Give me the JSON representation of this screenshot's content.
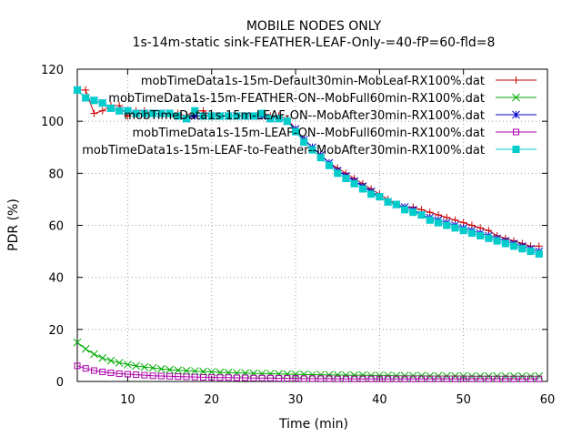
{
  "chart_data": {
    "type": "line",
    "title": "MOBILE NODES ONLY",
    "subtitle": "1s-14m-static sink-FEATHER-LEAF-Only-=40-fP=60-fld=8",
    "xlabel": "Time (min)",
    "ylabel": "PDR (%)",
    "xlim": [
      4,
      60
    ],
    "ylim": [
      0,
      120
    ],
    "xticks": [
      "10",
      "20",
      "30",
      "40",
      "50",
      "60"
    ],
    "yticks": [
      "0",
      "20",
      "40",
      "60",
      "80",
      "100",
      "120"
    ],
    "grid": true,
    "legend_position": "top-right",
    "series": [
      {
        "name": "mobTimeData1s-15m-Default30min-MobLeaf-RX100%.dat",
        "color": "#cc0000",
        "marker": "plus",
        "x": [
          4,
          5,
          6,
          7,
          8,
          9,
          10,
          11,
          12,
          13,
          14,
          15,
          16,
          17,
          18,
          19,
          20,
          21,
          22,
          23,
          24,
          25,
          26,
          27,
          28,
          29,
          30,
          31,
          32,
          33,
          34,
          35,
          36,
          37,
          38,
          39,
          40,
          41,
          42,
          43,
          44,
          45,
          46,
          47,
          48,
          49,
          50,
          51,
          52,
          53,
          54,
          55,
          56,
          57,
          58,
          59
        ],
        "y": [
          112,
          112,
          103,
          104,
          106,
          106,
          102,
          104,
          104,
          103,
          103,
          103,
          103,
          102,
          104,
          104,
          102,
          102,
          102,
          102,
          102,
          102,
          102,
          102,
          102,
          101,
          97,
          93,
          90,
          87,
          84,
          82,
          80,
          78,
          76,
          74,
          72,
          70,
          68,
          67,
          67,
          66,
          65,
          64,
          63,
          62,
          61,
          60,
          59,
          58,
          56,
          55,
          54,
          53,
          52,
          52
        ]
      },
      {
        "name": "mobTimeData1s-15m-FEATHER-ON--MobFull60min-RX100%.dat",
        "color": "#00aa00",
        "marker": "x",
        "x": [
          4,
          5,
          6,
          7,
          8,
          9,
          10,
          11,
          12,
          13,
          14,
          15,
          16,
          17,
          18,
          19,
          20,
          21,
          22,
          23,
          24,
          25,
          26,
          27,
          28,
          29,
          30,
          31,
          32,
          33,
          34,
          35,
          36,
          37,
          38,
          39,
          40,
          41,
          42,
          43,
          44,
          45,
          46,
          47,
          48,
          49,
          50,
          51,
          52,
          53,
          54,
          55,
          56,
          57,
          58,
          59
        ],
        "y": [
          15,
          12.5,
          10.5,
          9,
          8,
          7.2,
          6.5,
          6,
          5.5,
          5.2,
          4.8,
          4.5,
          4.3,
          4.1,
          4,
          3.8,
          3.7,
          3.5,
          3.4,
          3.3,
          3.2,
          3.1,
          3,
          3,
          2.9,
          2.8,
          2.7,
          2.7,
          2.6,
          2.6,
          2.5,
          2.5,
          2.4,
          2.4,
          2.4,
          2.3,
          2.3,
          2.3,
          2.2,
          2.2,
          2.2,
          2.2,
          2.1,
          2.1,
          2.1,
          2.1,
          2.1,
          2,
          2,
          2,
          2,
          2,
          2,
          2,
          2,
          2
        ]
      },
      {
        "name": "mobTimeData1s-15m-LEAF-ON--MobAfter30min-RX100%.dat",
        "color": "#0000cc",
        "marker": "star",
        "x": [
          4,
          5,
          6,
          7,
          8,
          9,
          10,
          11,
          12,
          13,
          14,
          15,
          16,
          17,
          18,
          19,
          20,
          21,
          22,
          23,
          24,
          25,
          26,
          27,
          28,
          29,
          30,
          31,
          32,
          33,
          34,
          35,
          36,
          37,
          38,
          39,
          40,
          41,
          42,
          43,
          44,
          45,
          46,
          47,
          48,
          49,
          50,
          51,
          52,
          53,
          54,
          55,
          56,
          57,
          58,
          59
        ],
        "y": [
          112,
          109,
          108,
          107,
          105,
          104,
          104,
          103,
          103,
          103,
          103,
          103,
          102,
          101,
          102,
          102,
          102,
          102,
          102,
          102,
          102,
          102,
          102,
          101,
          101,
          100,
          97,
          93,
          90,
          87,
          84,
          81,
          79,
          77,
          75,
          73,
          71,
          69,
          68,
          67,
          66,
          64,
          63,
          62,
          61,
          60,
          59,
          58,
          57,
          56,
          55,
          54,
          53,
          52,
          51,
          50
        ]
      },
      {
        "name": "mobTimeData1s-15m-LEAF-ON--MobFull60min-RX100%.dat",
        "color": "#aa00aa",
        "marker": "square-open",
        "x": [
          4,
          5,
          6,
          7,
          8,
          9,
          10,
          11,
          12,
          13,
          14,
          15,
          16,
          17,
          18,
          19,
          20,
          21,
          22,
          23,
          24,
          25,
          26,
          27,
          28,
          29,
          30,
          31,
          32,
          33,
          34,
          35,
          36,
          37,
          38,
          39,
          40,
          41,
          42,
          43,
          44,
          45,
          46,
          47,
          48,
          49,
          50,
          51,
          52,
          53,
          54,
          55,
          56,
          57,
          58,
          59
        ],
        "y": [
          6,
          5,
          4.2,
          3.7,
          3.3,
          3,
          2.8,
          2.6,
          2.4,
          2.2,
          2.1,
          2,
          1.9,
          1.8,
          1.7,
          1.6,
          1.6,
          1.5,
          1.5,
          1.4,
          1.4,
          1.3,
          1.3,
          1.3,
          1.2,
          1.2,
          1.2,
          1.1,
          1.1,
          1.1,
          1.1,
          1,
          1,
          1,
          1,
          1,
          1,
          1,
          1,
          1,
          1,
          1,
          1,
          1,
          1,
          1,
          1,
          1,
          1,
          1,
          1,
          1,
          1,
          1,
          1,
          1
        ]
      },
      {
        "name": "mobTimeData1s-15m-LEAF-to-Feather--MobAfter30min-RX100%.dat",
        "color": "#00cccc",
        "marker": "square-filled",
        "x": [
          4,
          5,
          6,
          7,
          8,
          9,
          10,
          11,
          12,
          13,
          14,
          15,
          16,
          17,
          18,
          19,
          20,
          21,
          22,
          23,
          24,
          25,
          26,
          27,
          28,
          29,
          30,
          31,
          32,
          33,
          34,
          35,
          36,
          37,
          38,
          39,
          40,
          41,
          42,
          43,
          44,
          45,
          46,
          47,
          48,
          49,
          50,
          51,
          52,
          53,
          54,
          55,
          56,
          57,
          58,
          59
        ],
        "y": [
          112,
          109,
          108,
          107,
          105,
          104,
          104,
          103,
          103,
          103,
          103,
          103,
          102,
          101,
          104,
          102,
          102,
          102,
          102,
          102,
          102,
          102,
          103,
          101,
          101,
          100,
          96,
          92,
          89,
          86,
          83,
          80,
          78,
          76,
          74,
          72,
          71,
          69,
          68,
          66,
          65,
          64,
          62,
          61,
          60,
          59,
          58,
          57,
          56,
          55,
          54,
          53,
          52,
          51,
          50,
          49
        ]
      }
    ]
  }
}
